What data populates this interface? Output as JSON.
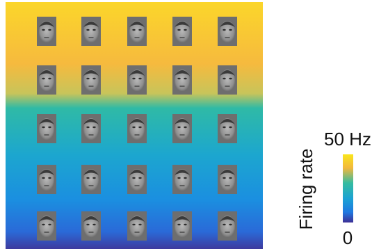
{
  "colorbar": {
    "label": "Firing rate",
    "clim": [
      0,
      50
    ],
    "ticks": [
      {
        "value": 50,
        "label": "50 Hz"
      },
      0
    ]
  }
}
